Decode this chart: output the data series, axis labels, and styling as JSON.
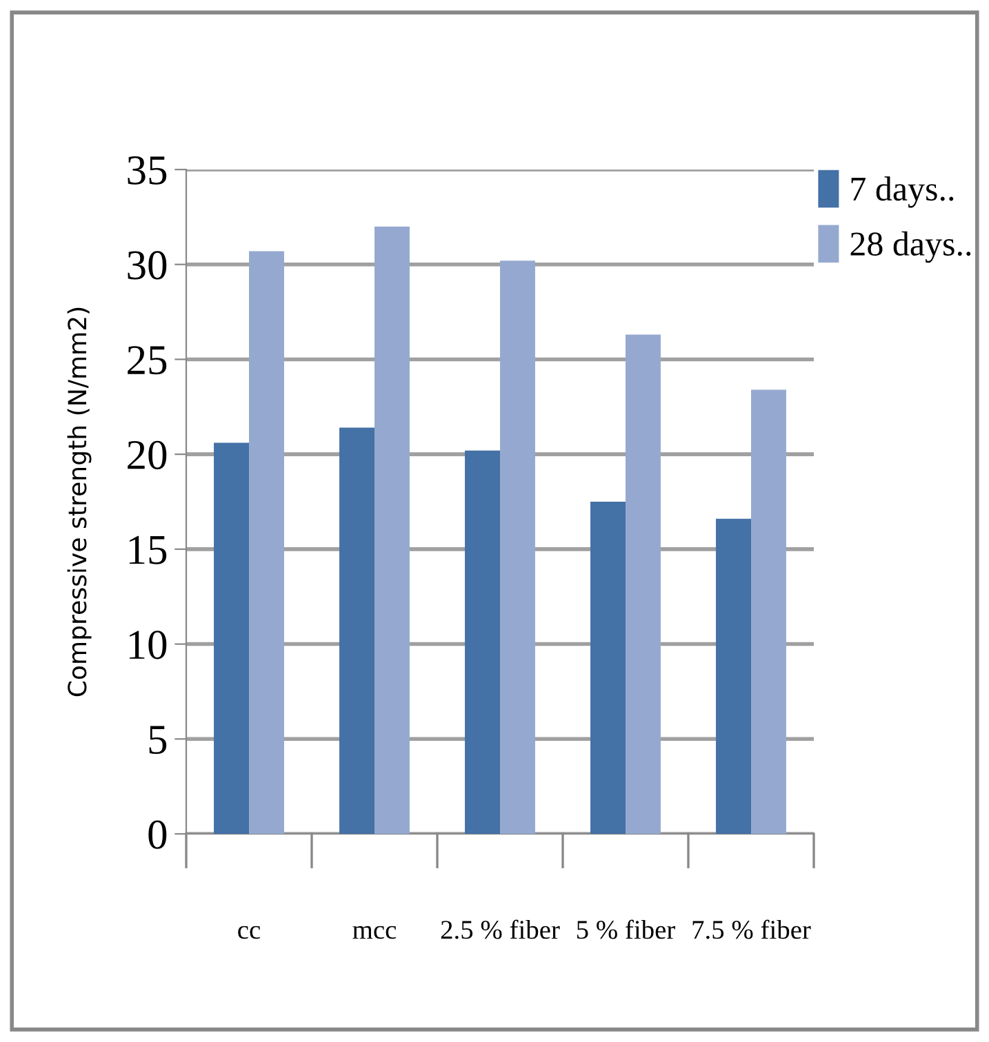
{
  "chart_data": {
    "type": "bar",
    "ylabel": "Compressive strength (N/mm2)",
    "categories": [
      "cc",
      "mcc",
      "2.5 % fiber",
      "5 % fiber",
      "7.5 % fiber"
    ],
    "series": [
      {
        "name": "7 days..",
        "color": "#4471a6",
        "values": [
          20.6,
          21.4,
          20.2,
          17.5,
          16.6
        ]
      },
      {
        "name": "28 days..",
        "color": "#95a9d0",
        "values": [
          30.7,
          32.0,
          30.2,
          26.3,
          23.4
        ]
      }
    ],
    "ylim": [
      0,
      35
    ],
    "yticks": [
      0,
      5,
      10,
      15,
      20,
      25,
      30,
      35
    ],
    "grid": "y",
    "legend": "top right"
  }
}
